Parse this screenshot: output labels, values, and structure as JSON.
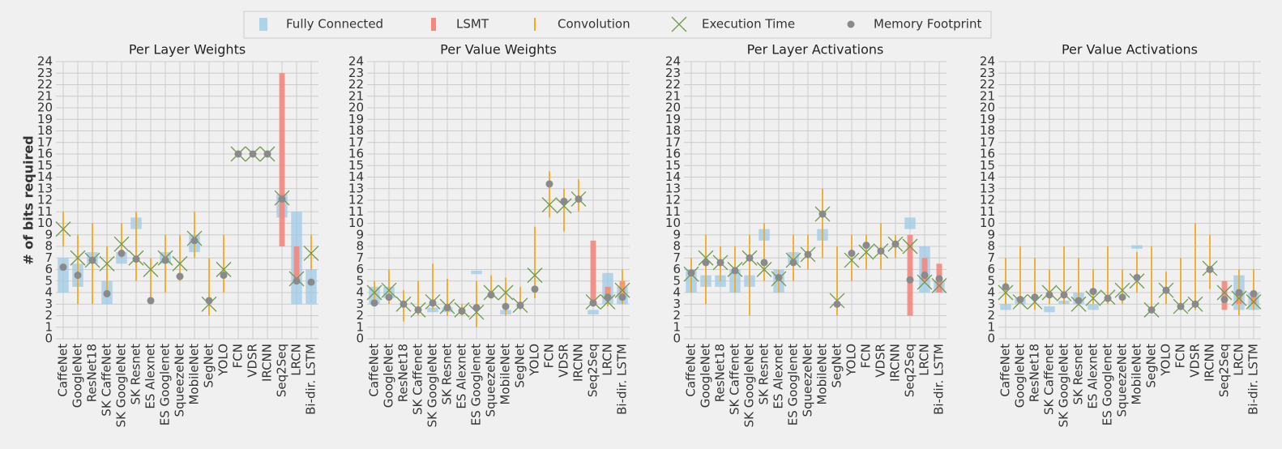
{
  "ylabel": "# of bits required",
  "legend": [
    {
      "name": "Fully Connected",
      "color": "#9ecae6"
    },
    {
      "name": "LSMT",
      "color": "#f4877e"
    },
    {
      "name": "Convolution",
      "color": "#f0ab25"
    },
    {
      "name": "Execution Time",
      "color": "#6d9a4c"
    },
    {
      "name": "Memory Footprint",
      "color": "#8a8a8a"
    }
  ],
  "chart_data": [
    {
      "type": "range",
      "title": "Per Layer Weights",
      "categories": [
        "CaffeNet",
        "GoogleNet",
        "ResNet18",
        "SK CaffeNet",
        "SK GoogleNet",
        "SK Resnet",
        "ES Alexnet",
        "ES Googlenet",
        "SqueezeNet",
        "MobileNet",
        "SegNet",
        "YOLO",
        "FCN",
        "VDSR",
        "IRCNN",
        "Seq2Seq",
        "LRCN",
        "Bi-dir. LSTM"
      ],
      "ylim": [
        0,
        24
      ],
      "yticks": [
        0,
        1,
        2,
        3,
        4,
        5,
        6,
        7,
        8,
        9,
        10,
        11,
        12,
        13,
        14,
        15,
        16,
        17,
        18,
        19,
        20,
        21,
        22,
        23,
        24
      ],
      "grid": true,
      "series": [
        {
          "low": [
            4,
            4.5,
            6.5,
            3,
            6.5,
            9.5,
            null,
            6.5,
            null,
            7.5,
            null,
            null,
            null,
            null,
            null,
            10.5,
            3,
            3
          ],
          "high": [
            7,
            6.5,
            7.5,
            5,
            7.5,
            10.5,
            null,
            7.5,
            null,
            9,
            null,
            null,
            null,
            null,
            null,
            12.5,
            11,
            6
          ]
        },
        {
          "low": [
            null,
            null,
            null,
            null,
            null,
            null,
            null,
            null,
            null,
            null,
            null,
            null,
            null,
            null,
            null,
            8,
            5,
            null
          ],
          "high": [
            null,
            null,
            null,
            null,
            null,
            null,
            null,
            null,
            null,
            null,
            null,
            null,
            null,
            null,
            null,
            23,
            8,
            null
          ]
        },
        {
          "low": [
            8,
            3,
            3,
            4,
            7,
            5,
            3,
            4,
            5,
            7,
            2,
            4,
            null,
            null,
            null,
            null,
            null,
            6
          ],
          "high": [
            11,
            9,
            10,
            8,
            10,
            11,
            7,
            9,
            9,
            11,
            7,
            9,
            null,
            null,
            null,
            null,
            null,
            9
          ]
        },
        {
          "values": [
            9.5,
            7,
            6.8,
            6.5,
            8.2,
            7,
            6,
            7,
            6.5,
            8.7,
            3,
            6,
            16,
            16,
            16,
            12.2,
            5.2,
            7.4
          ]
        },
        {
          "values": [
            6.2,
            5.5,
            6.8,
            3.9,
            7.4,
            6.9,
            3.3,
            6.8,
            5.4,
            8.5,
            3.3,
            5.5,
            16,
            16,
            16,
            12.1,
            5,
            4.9
          ]
        }
      ]
    },
    {
      "type": "range",
      "title": "Per Value Weights",
      "categories": [
        "CaffeNet",
        "GoogleNet",
        "ResNet18",
        "SK Caffenet",
        "SK GoogleNet",
        "SK Resnet",
        "ES Alexnet",
        "ES Googlenet",
        "SqueezeNet",
        "MobileNet",
        "SegNet",
        "YOLO",
        "FCN",
        "VDSR",
        "IRCNN",
        "Seq2Seq",
        "LRCN",
        "Bi-dir. LSTM"
      ],
      "ylim": [
        0,
        24
      ],
      "yticks": [
        0,
        1,
        2,
        3,
        4,
        5,
        6,
        7,
        8,
        9,
        10,
        11,
        12,
        13,
        14,
        15,
        16,
        17,
        18,
        19,
        20,
        21,
        22,
        23,
        24
      ],
      "grid": true,
      "series": [
        {
          "low": [
            3,
            3.5,
            null,
            null,
            2.3,
            2.3,
            null,
            5.6,
            null,
            2.1,
            null,
            null,
            null,
            null,
            null,
            2.1,
            3,
            3
          ],
          "high": [
            4.5,
            4.5,
            null,
            null,
            2.7,
            2.7,
            null,
            5.9,
            null,
            2.5,
            null,
            null,
            null,
            null,
            null,
            2.5,
            5.7,
            4.5
          ]
        },
        {
          "low": [
            null,
            null,
            null,
            null,
            null,
            null,
            null,
            null,
            null,
            null,
            null,
            null,
            null,
            null,
            null,
            3,
            3.5,
            3.5
          ],
          "high": [
            null,
            null,
            null,
            null,
            null,
            null,
            null,
            null,
            null,
            null,
            null,
            null,
            null,
            null,
            null,
            8.5,
            4.5,
            5
          ]
        },
        {
          "low": [
            3,
            3,
            1.5,
            2,
            2.5,
            2,
            2,
            1,
            3.5,
            2,
            2.5,
            3.5,
            10.5,
            9.3,
            11,
            null,
            2.8,
            3
          ],
          "high": [
            5,
            6,
            4.2,
            5,
            6.5,
            5.2,
            3,
            5,
            5.5,
            5.3,
            4.5,
            9.7,
            14.5,
            13,
            13.8,
            null,
            4.2,
            6
          ]
        },
        {
          "values": [
            4,
            4.2,
            3,
            2.5,
            3.2,
            2.8,
            2.5,
            2.3,
            4,
            4,
            2.9,
            5.5,
            11.6,
            11.5,
            12.1,
            3.2,
            3.2,
            4.2
          ]
        },
        {
          "values": [
            3.1,
            3.6,
            3,
            2.5,
            3.1,
            2.7,
            2.4,
            2.7,
            3.8,
            2.8,
            2.9,
            4.3,
            13.4,
            11.9,
            12.1,
            3.1,
            3.6,
            3.6
          ]
        }
      ]
    },
    {
      "type": "range",
      "title": "Per Layer Activations",
      "categories": [
        "CaffeNet",
        "GoogleNet",
        "ResNet18",
        "SK Caffenet",
        "SK GoogleNet",
        "SK Resnet",
        "ES Alexnet",
        "ES Googlenet",
        "SqueezeNet",
        "MobileNet",
        "SegNet",
        "YOLO",
        "FCN",
        "VDSR",
        "IRCNN",
        "Seq2Seq",
        "LRCN",
        "Bi-dir. LSTM"
      ],
      "ylim": [
        0,
        24
      ],
      "yticks": [
        0,
        1,
        2,
        3,
        4,
        5,
        6,
        7,
        8,
        9,
        10,
        11,
        12,
        13,
        14,
        15,
        16,
        17,
        18,
        19,
        20,
        21,
        22,
        23,
        24
      ],
      "grid": true,
      "series": [
        {
          "low": [
            4,
            4.5,
            4.5,
            4,
            4.5,
            8.5,
            4,
            6.5,
            null,
            8.5,
            null,
            null,
            null,
            null,
            null,
            9.5,
            4,
            4
          ],
          "high": [
            6,
            5.5,
            5.5,
            6,
            5.5,
            9.5,
            6,
            7.5,
            null,
            9.5,
            null,
            null,
            null,
            null,
            null,
            10.5,
            8,
            5
          ]
        },
        {
          "low": [
            null,
            null,
            null,
            null,
            null,
            null,
            null,
            null,
            null,
            null,
            null,
            null,
            null,
            null,
            null,
            2,
            5,
            4
          ],
          "high": [
            null,
            null,
            null,
            null,
            null,
            null,
            null,
            null,
            null,
            null,
            null,
            null,
            null,
            null,
            null,
            9,
            7,
            6.5
          ]
        },
        {
          "low": [
            4,
            3,
            5,
            4,
            2,
            5,
            4,
            5,
            6,
            7,
            2,
            5,
            6,
            6,
            7,
            null,
            null,
            null
          ],
          "high": [
            7,
            9,
            8,
            8,
            9,
            10,
            6,
            9,
            9,
            13,
            8,
            9,
            9,
            10,
            9,
            null,
            null,
            null
          ]
        },
        {
          "values": [
            5.6,
            7,
            6.6,
            6,
            7,
            6,
            5.2,
            6.8,
            7.3,
            10.8,
            3.3,
            6.8,
            7.5,
            7.6,
            8.2,
            8,
            4.9,
            4.6
          ]
        },
        {
          "values": [
            5.7,
            6.6,
            6.6,
            5.9,
            7,
            6.6,
            5.3,
            6.6,
            7.3,
            10.8,
            3,
            7.4,
            8.1,
            7.6,
            8.2,
            5.1,
            5.5,
            5.2
          ]
        }
      ]
    },
    {
      "type": "range",
      "title": "Per Value Activations",
      "categories": [
        "CaffeNet",
        "GoogleNet",
        "ResNet18",
        "SK Caffenet",
        "SK GoogleNet",
        "SK Resnet",
        "ES Alexnet",
        "ES Googlenet",
        "SqueezeNet",
        "MobileNet",
        "SegNet",
        "YOLO",
        "FCN",
        "VDSR",
        "IRCNN",
        "Seq2Seq",
        "LRCN",
        "Bi-dir. LSTM"
      ],
      "ylim": [
        0,
        24
      ],
      "yticks": [
        0,
        1,
        2,
        3,
        4,
        5,
        6,
        7,
        8,
        9,
        10,
        11,
        12,
        13,
        14,
        15,
        16,
        17,
        18,
        19,
        20,
        21,
        22,
        23,
        24
      ],
      "grid": true,
      "series": [
        {
          "low": [
            2.5,
            3,
            null,
            2.3,
            3,
            3,
            2.5,
            null,
            null,
            7.8,
            null,
            null,
            null,
            null,
            null,
            null,
            2.5,
            2.5
          ],
          "high": [
            3,
            3.5,
            null,
            2.8,
            3.3,
            4,
            3,
            null,
            null,
            8.1,
            null,
            null,
            null,
            null,
            null,
            null,
            5.5,
            4
          ]
        },
        {
          "low": [
            null,
            null,
            null,
            null,
            null,
            null,
            null,
            null,
            null,
            null,
            null,
            null,
            null,
            null,
            null,
            2.5,
            3,
            3
          ],
          "high": [
            null,
            null,
            null,
            null,
            null,
            null,
            null,
            null,
            null,
            null,
            null,
            null,
            null,
            null,
            null,
            5,
            4,
            4
          ]
        },
        {
          "low": [
            3,
            3,
            2.5,
            3,
            3,
            3,
            3,
            3,
            3,
            4,
            2.5,
            3,
            2.5,
            2.5,
            4.3,
            null,
            2,
            2.5
          ],
          "high": [
            7,
            8,
            7,
            6,
            8,
            7,
            6,
            8,
            6,
            7.5,
            8,
            5.8,
            7,
            10,
            9,
            null,
            6,
            6
          ]
        },
        {
          "values": [
            4,
            3.2,
            3.2,
            4,
            3.9,
            3,
            3.5,
            3.6,
            4.2,
            5,
            2.5,
            4.2,
            2.8,
            3,
            6.1,
            4,
            3.5,
            3.2
          ]
        },
        {
          "values": [
            4.5,
            3.4,
            3.6,
            3.8,
            3.8,
            3.3,
            4.1,
            3.5,
            3.6,
            5.3,
            2.5,
            4.2,
            2.8,
            3,
            6,
            3.4,
            4,
            3.9
          ]
        }
      ]
    }
  ]
}
